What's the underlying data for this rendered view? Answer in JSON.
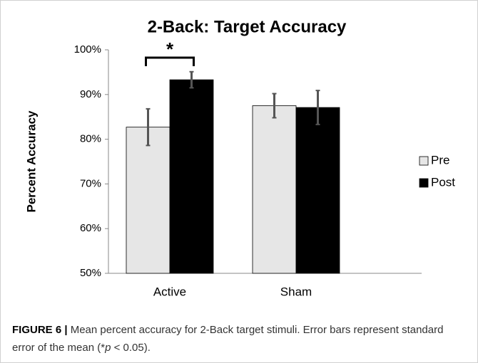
{
  "chart_data": {
    "type": "bar",
    "title": "2-Back: Target Accuracy",
    "y_label": "Percent Accuracy",
    "categories": [
      "Active",
      "Sham"
    ],
    "series": [
      {
        "name": "Pre",
        "color": "#e6e6e6",
        "values": [
          82.7,
          87.5
        ],
        "errors": [
          4.1,
          2.7
        ]
      },
      {
        "name": "Post",
        "color": "#000000",
        "values": [
          93.3,
          87.1
        ],
        "errors": [
          1.8,
          3.8
        ]
      }
    ],
    "ylim": [
      50,
      100
    ],
    "yticks": [
      {
        "value": 50,
        "label": "50%"
      },
      {
        "value": 60,
        "label": "60%"
      },
      {
        "value": 70,
        "label": "70%"
      },
      {
        "value": 80,
        "label": "80%"
      },
      {
        "value": 90,
        "label": "90%"
      },
      {
        "value": 100,
        "label": "100%"
      }
    ],
    "grid": false,
    "legend": "right",
    "annotation": "*"
  },
  "caption": {
    "label": "FIGURE 6 |",
    "text": " Mean percent accuracy for 2-Back target stimuli. Error bars represent standard error of the mean (*",
    "italic": "p",
    "after": " < 0.05)."
  }
}
